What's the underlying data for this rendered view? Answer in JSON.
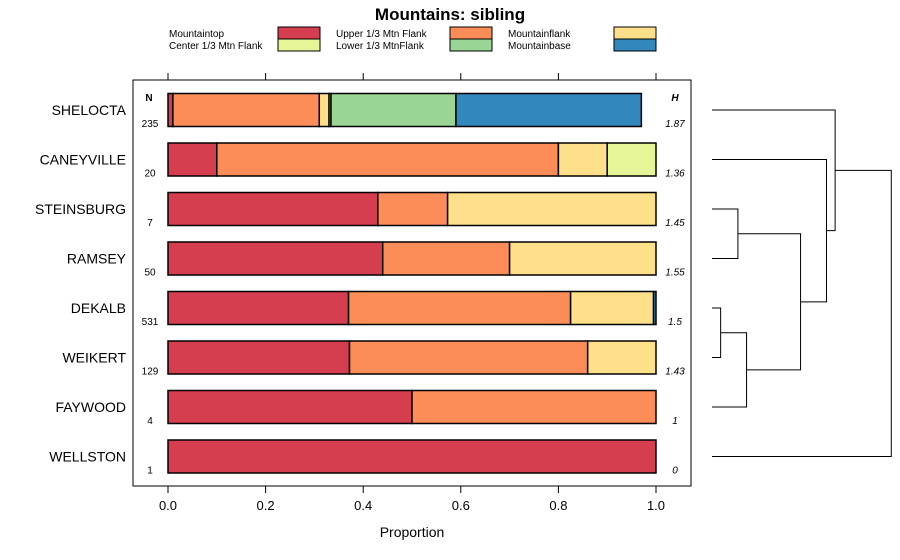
{
  "chart_data": {
    "type": "bar",
    "orientation": "horizontal",
    "stacked": true,
    "title": "Mountains: sibling",
    "xlabel": "Proportion",
    "ylabel": "",
    "xlim": [
      0,
      1
    ],
    "xticks": [
      "0.0",
      "0.2",
      "0.4",
      "0.6",
      "0.8",
      "1.0"
    ],
    "n_header": "N",
    "h_header": "H",
    "categories": [
      "SHELOCTA",
      "CANEYVILLE",
      "STEINSBURG",
      "RAMSEY",
      "DEKALB",
      "WEIKERT",
      "FAYWOOD",
      "WELLSTON"
    ],
    "n": [
      "235",
      "20",
      "7",
      "50",
      "531",
      "129",
      "4",
      "1"
    ],
    "h": [
      "1.87",
      "1.36",
      "1.45",
      "1.55",
      "1.5",
      "1.43",
      "1",
      "0"
    ],
    "series": [
      {
        "name": "Mountaintop",
        "color": "#d53e4f",
        "values": [
          0.01,
          0.1,
          0.43,
          0.44,
          0.37,
          0.372,
          0.5,
          1.0
        ]
      },
      {
        "name": "Upper 1/3 Mtn Flank",
        "color": "#fc8d59",
        "values": [
          0.3,
          0.7,
          0.143,
          0.26,
          0.455,
          0.488,
          0.5,
          0
        ]
      },
      {
        "name": "Mountainflank",
        "color": "#fee08b",
        "values": [
          0.02,
          0.1,
          0.427,
          0.3,
          0.17,
          0.14,
          0,
          0
        ]
      },
      {
        "name": "Center 1/3 Mtn Flank",
        "color": "#e6f598",
        "values": [
          0.004,
          0.1,
          0,
          0,
          0,
          0,
          0,
          0
        ]
      },
      {
        "name": "Lower 1/3 MtnFlank",
        "color": "#99d594",
        "values": [
          0.256,
          0,
          0,
          0,
          0,
          0,
          0,
          0
        ]
      },
      {
        "name": "Mountainbase",
        "color": "#3288bd",
        "values": [
          0.38,
          0,
          0,
          0,
          0.005,
          0,
          0,
          0
        ]
      }
    ],
    "legend_position": "top",
    "dendrogram": {
      "leaf_order": [
        "SHELOCTA",
        "CANEYVILLE",
        "STEINSBURG",
        "RAMSEY",
        "DEKALB",
        "WEIKERT",
        "FAYWOOD",
        "WELLSTON"
      ],
      "merges": [
        {
          "a": "DEKALB",
          "b": "WEIKERT",
          "height": 0.04
        },
        {
          "a": "c1",
          "b": "FAYWOOD",
          "height": 0.16
        },
        {
          "a": "STEINSBURG",
          "b": "RAMSEY",
          "height": 0.12
        },
        {
          "a": "c3",
          "b": "c2",
          "height": 0.41
        },
        {
          "a": "CANEYVILLE",
          "b": "c4",
          "height": 0.53
        },
        {
          "a": "SHELOCTA",
          "b": "c5",
          "height": 0.57
        },
        {
          "a": "c6",
          "b": "WELLSTON",
          "height": 0.83
        }
      ]
    }
  }
}
